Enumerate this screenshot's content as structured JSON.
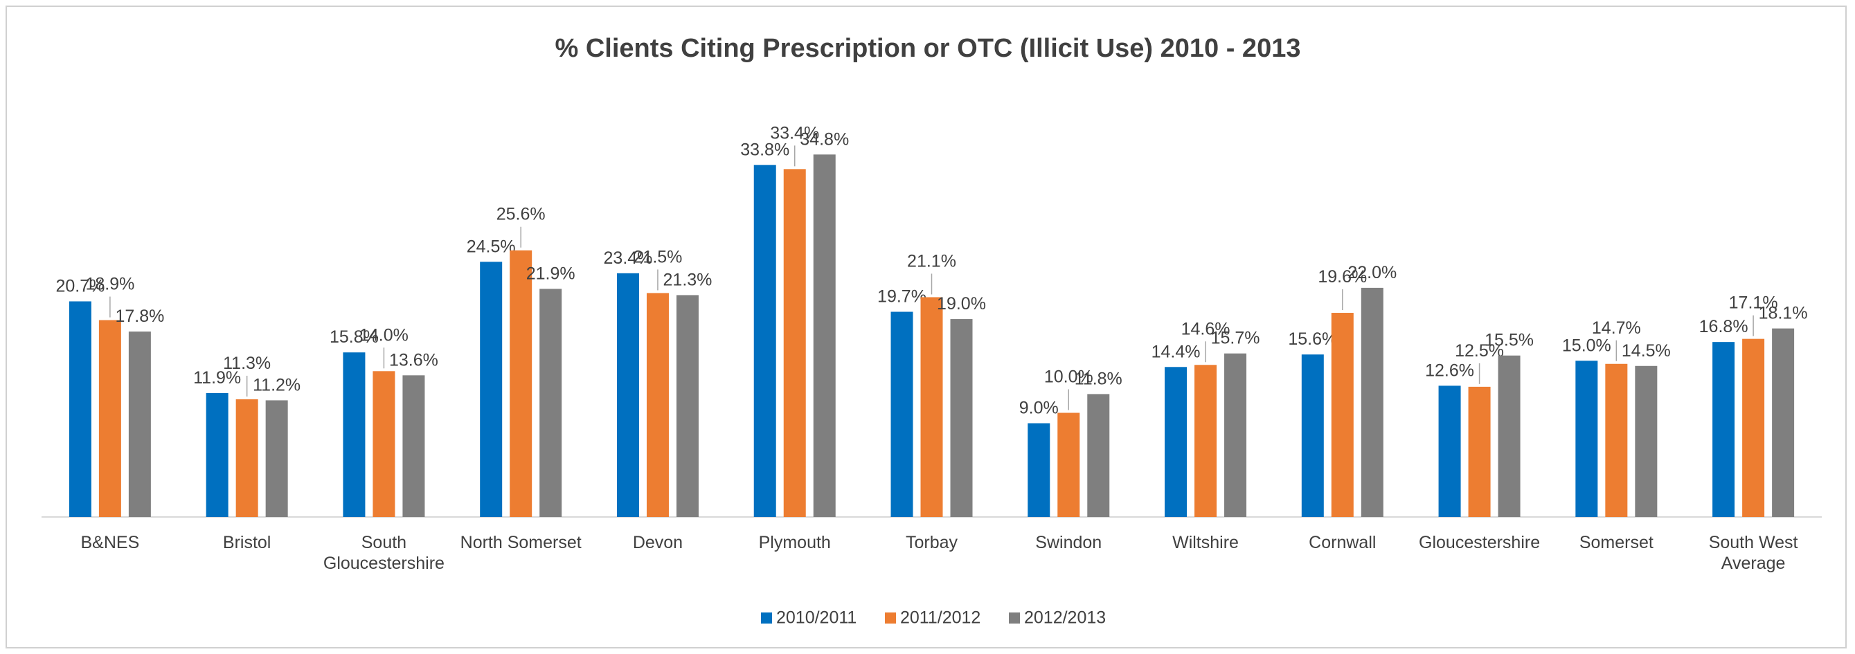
{
  "chart_data": {
    "type": "bar",
    "title": "% Clients Citing Prescription or OTC (Illicit Use) 2010 - 2013",
    "categories": [
      "B&NES",
      "Bristol",
      "South Gloucestershire",
      "North Somerset",
      "Devon",
      "Plymouth",
      "Torbay",
      "Swindon",
      "Wiltshire",
      "Cornwall",
      "Gloucestershire",
      "Somerset",
      "South West Average"
    ],
    "series": [
      {
        "name": "2010/2011",
        "color": "#0070c0",
        "values": [
          20.7,
          11.9,
          15.8,
          24.5,
          23.4,
          33.8,
          19.7,
          9.0,
          14.4,
          15.6,
          12.6,
          15.0,
          16.8
        ],
        "value_labels": [
          "20.7%",
          "11.9%",
          "15.8%",
          "24.5%",
          "23.4%",
          "33.8%",
          "19.7%",
          "9.0%",
          "14.4%",
          "15.6%",
          "12.6%",
          "15.0%",
          "16.8%"
        ]
      },
      {
        "name": "2011/2012",
        "color": "#ed7d31",
        "values": [
          18.9,
          11.3,
          14.0,
          25.6,
          21.5,
          33.4,
          21.1,
          10.0,
          14.6,
          19.6,
          12.5,
          14.7,
          17.1
        ],
        "value_labels": [
          "18.9%",
          "11.3%",
          "14.0%",
          "25.6%",
          "21.5%",
          "33.4%",
          "21.1%",
          "10.0%",
          "14.6%",
          "19.6%",
          "12.5%",
          "14.7%",
          "17.1%"
        ]
      },
      {
        "name": "2012/2013",
        "color": "#7f7f7f",
        "values": [
          17.8,
          11.2,
          13.6,
          21.9,
          21.3,
          34.8,
          19.0,
          11.8,
          15.7,
          22.0,
          15.5,
          14.5,
          18.1
        ],
        "value_labels": [
          "17.8%",
          "11.2%",
          "13.6%",
          "21.9%",
          "21.3%",
          "34.8%",
          "19.0%",
          "11.8%",
          "15.7%",
          "22.0%",
          "15.5%",
          "14.5%",
          "18.1%"
        ]
      }
    ],
    "ylim": [
      0,
      40
    ],
    "legend": "bottom"
  }
}
